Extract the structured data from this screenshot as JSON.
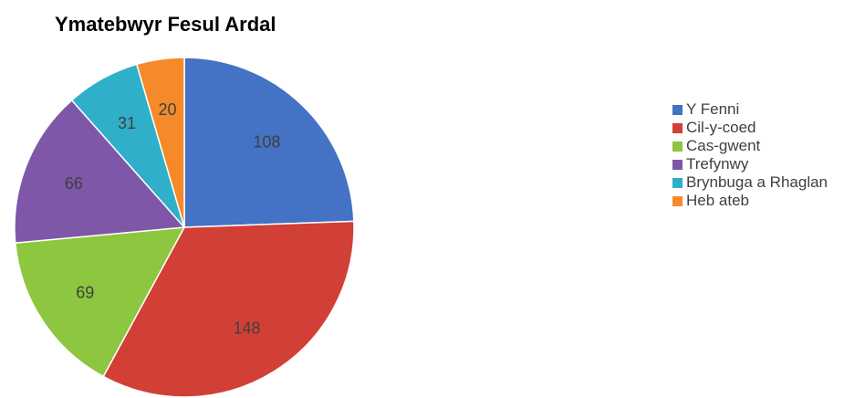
{
  "chart_data": {
    "type": "pie",
    "title": "Ymatebwyr Fesul Ardal",
    "categories": [
      "Y Fenni",
      "Cil-y-coed",
      "Cas-gwent",
      "Trefynwy",
      "Brynbuga a Rhaglan",
      "Heb ateb"
    ],
    "values": [
      108,
      148,
      69,
      66,
      31,
      20
    ],
    "colors": [
      "#4472C4",
      "#D23F36",
      "#8DC63F",
      "#7E57A8",
      "#2FAFC9",
      "#F58A2B"
    ],
    "legend_position": "right",
    "data_labels": true
  }
}
